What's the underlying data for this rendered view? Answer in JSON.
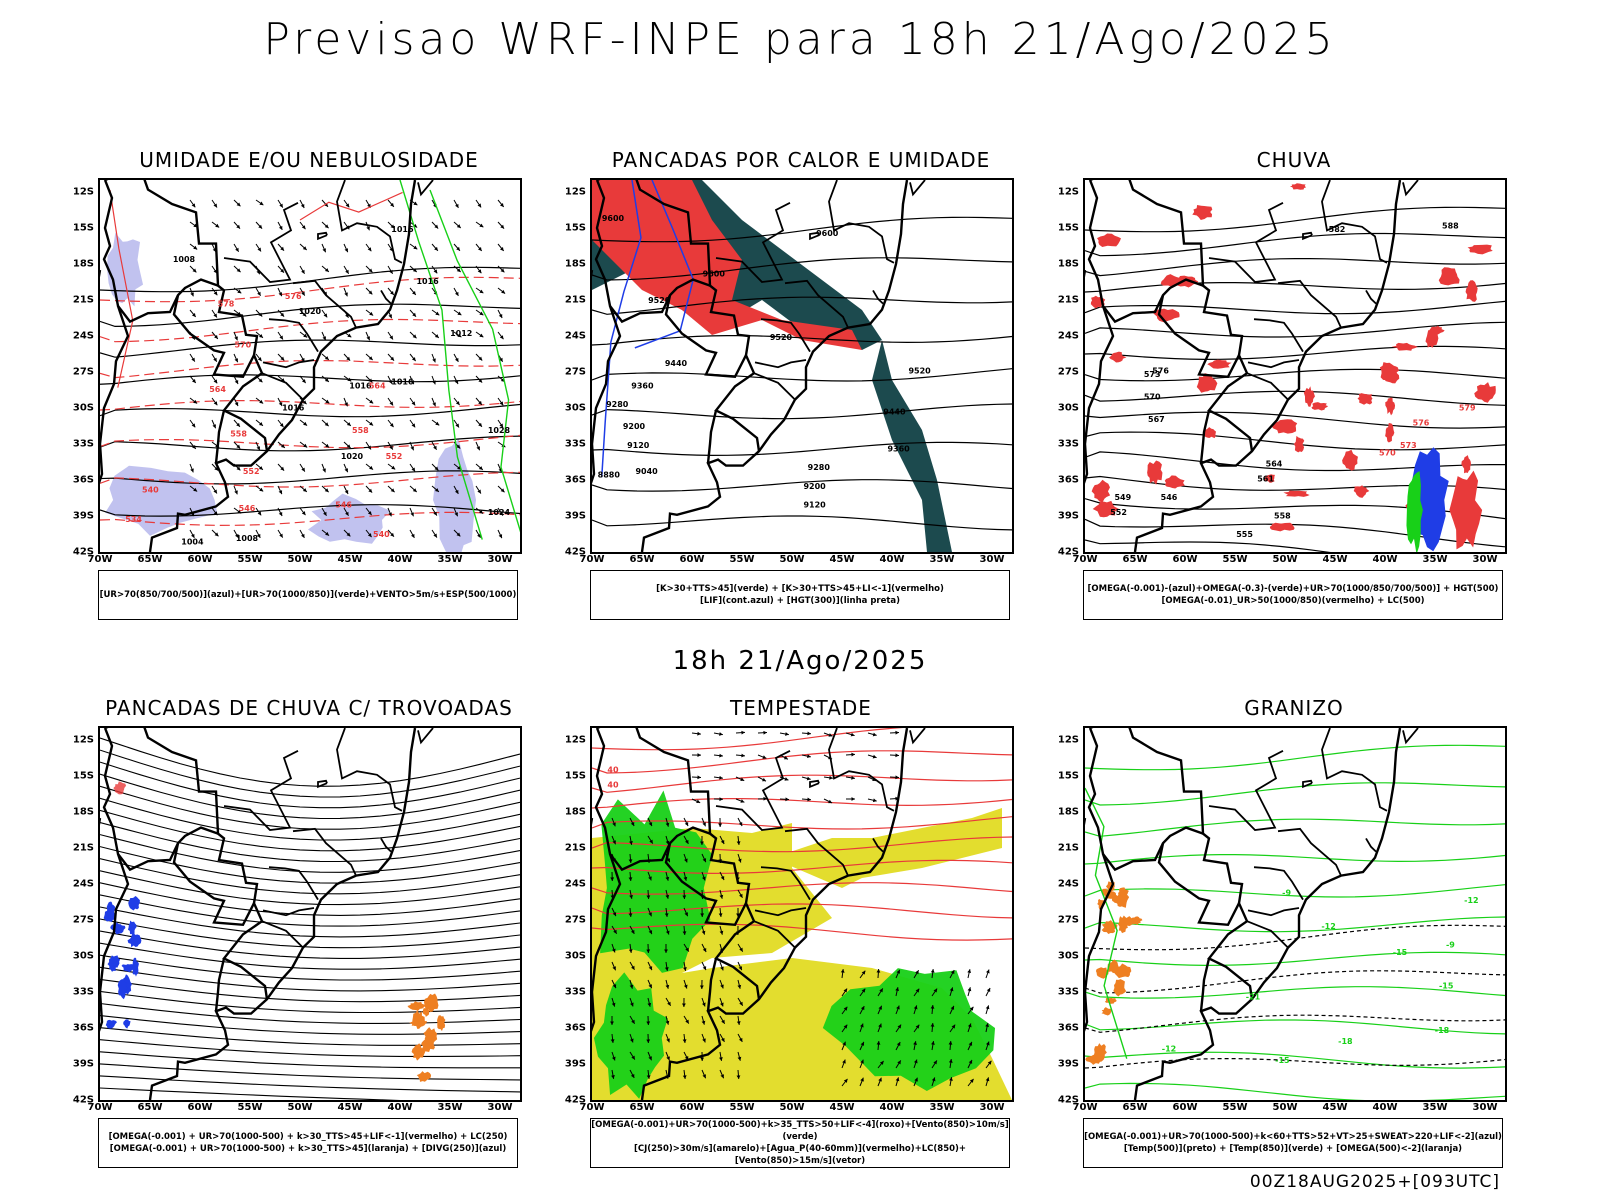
{
  "title": "Previsao WRF-INPE  para 18h 21/Ago/2025",
  "mid_title": "18h 21/Ago/2025",
  "footer": "00Z18AUG2025+[093UTC]",
  "axes": {
    "lat_labels": [
      "12S",
      "15S",
      "18S",
      "21S",
      "24S",
      "27S",
      "30S",
      "33S",
      "36S",
      "39S",
      "42S"
    ],
    "lon_labels": [
      "70W",
      "65W",
      "60W",
      "55W",
      "50W",
      "45W",
      "40W",
      "35W",
      "30W"
    ]
  },
  "colors": {
    "red": "#e83a3a",
    "green": "#18d018",
    "blue": "#1f3de6",
    "light_blue": "#a6a8e8",
    "dark_teal": "#1c4a4e",
    "yellow": "#e3dd2e",
    "orange": "#ee7f22",
    "black": "#000000"
  },
  "panels": [
    {
      "title": "UMIDADE E/OU NEBULOSIDADE",
      "legend": [
        "[UR>70(850/700/500)](azul)+[UR>70(1000/850)](verde)+VENTO>5m/s+ESP(500/1000)"
      ],
      "labels": [
        "1008",
        "1016",
        "1020",
        "1016",
        "1012",
        "1016",
        "1020",
        "1016",
        "1016",
        "1008",
        "1004",
        "1028",
        "1024",
        "578",
        "576",
        "570",
        "564",
        "558",
        "552",
        "546",
        "540",
        "534",
        "564",
        "558",
        "552",
        "546",
        "540"
      ]
    },
    {
      "title": "PANCADAS POR CALOR E UMIDADE",
      "legend": [
        "[K>30+TTS>45](verde) + [K>30+TTS>45+LI<-1](vermelho)",
        "[LIF](cont.azul) + [HGT(300)](linha preta)"
      ],
      "labels": [
        "9600",
        "9600",
        "9520",
        "9600",
        "9520",
        "9440",
        "9360",
        "9280",
        "9200",
        "9120",
        "9040",
        "8880",
        "9520",
        "9440",
        "9360",
        "9280",
        "9200",
        "9120"
      ]
    },
    {
      "title": "CHUVA",
      "legend": [
        "[OMEGA(-0.001)-(azul)+OMEGA(-0.3)-(verde)+UR>70(1000/850/700/500)] + HGT(500)",
        "[OMEGA(-0.01)_UR>50(1000/850)(vermelho) + LC(500)"
      ],
      "labels": [
        "582",
        "588",
        "576",
        "573",
        "570",
        "567",
        "564",
        "561",
        "558",
        "555",
        "552",
        "549",
        "546",
        "579",
        "576",
        "573",
        "570"
      ]
    },
    {
      "title": "PANCADAS DE CHUVA C/ TROVOADAS",
      "legend": [
        "[OMEGA(-0.001) + UR>70(1000-500) + k>30_TTS>45+LIF<-1](vermelho) + LC(250)",
        "[OMEGA(-0.001) + UR>70(1000-500) + k>30_TTS>45](laranja) + [DIVG(250)](azul)"
      ],
      "labels": []
    },
    {
      "title": "TEMPESTADE",
      "legend": [
        "[OMEGA(-0.001)+UR>70(1000-500)+k>35_TTS>50+LIF<-4](roxo)+[Vento(850)>10m/s](verde)",
        "[CJ(250)>30m/s](amarelo)+[Agua_P(40-60mm)](vermelho)+LC(850)+[Vento(850)>15m/s](vetor)"
      ],
      "labels": [
        "40",
        "40"
      ]
    },
    {
      "title": "GRANIZO",
      "legend": [
        "[OMEGA(-0.001)+UR>70(1000-500)+k<60+TTS>52+VT>25+SWEAT>220+LIF<-2](azul)",
        "[Temp(500)](preto) + [Temp(850)](verde) + [OMEGA(500)<-2](laranja)"
      ],
      "labels": [
        "-12",
        "-15",
        "-18",
        "-21",
        "-9",
        "-12",
        "-15",
        "-18",
        "-15",
        "-12",
        "-9"
      ]
    }
  ]
}
